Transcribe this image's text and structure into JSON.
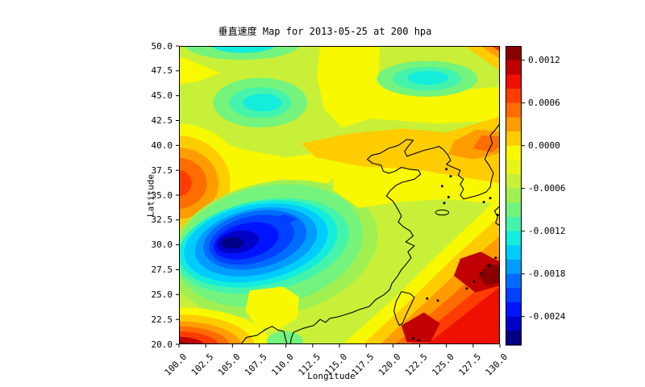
{
  "title": "垂直速度 Map for 2013-05-25 at 200 hpa",
  "axes": {
    "xlabel": "Longitude",
    "ylabel": "Latitude",
    "xlim": [
      100,
      130
    ],
    "ylim": [
      20,
      50
    ],
    "xticks": [
      "100.0",
      "102.5",
      "105.0",
      "107.5",
      "110.0",
      "112.5",
      "115.0",
      "117.5",
      "120.0",
      "122.5",
      "125.0",
      "127.5",
      "130.0"
    ],
    "xtick_values": [
      100,
      102.5,
      105,
      107.5,
      110,
      112.5,
      115,
      117.5,
      120,
      122.5,
      125,
      127.5,
      130
    ],
    "yticks": [
      "50.0",
      "47.5",
      "45.0",
      "42.5",
      "40.0",
      "37.5",
      "35.0",
      "32.5",
      "30.0",
      "27.5",
      "25.0",
      "22.5",
      "20.0"
    ],
    "ytick_values": [
      50,
      47.5,
      45,
      42.5,
      40,
      37.5,
      35,
      32.5,
      30,
      27.5,
      25,
      22.5,
      20
    ]
  },
  "colorbar": {
    "tick_labels": [
      "0.0012",
      "0.0006",
      "0.0000",
      "-0.0006",
      "-0.0012",
      "-0.0018",
      "-0.0024"
    ],
    "tick_values": [
      0.0012,
      0.0006,
      0.0,
      -0.0006,
      -0.0012,
      -0.0018,
      -0.0024
    ],
    "vmin": -0.0028,
    "vmax": 0.0014,
    "level_step": 0.0002,
    "n_bands": 21,
    "colormap": "jet",
    "palette": [
      "#000082",
      "#0000c8",
      "#0014ff",
      "#0040ff",
      "#006cff",
      "#009cff",
      "#00ccff",
      "#14ecdc",
      "#44f4ac",
      "#74f47c",
      "#a0f054",
      "#c8f038",
      "#e8f418",
      "#f8f800",
      "#ffcc00",
      "#ff9c00",
      "#ff6c00",
      "#ff3c00",
      "#ee1000",
      "#c00000",
      "#8a0000"
    ]
  },
  "chart_data": {
    "type": "filled-contour-map",
    "title": "垂直速度 Map for 2013-05-25 at 200 hpa",
    "variable": "垂直速度",
    "date": "2013-05-25",
    "pressure_level": "200 hpa",
    "xlabel": "Longitude",
    "ylabel": "Latitude",
    "xlim": [
      100,
      130
    ],
    "ylim": [
      20,
      50
    ],
    "colormap": "jet",
    "contour_interval": 0.0002,
    "features": [
      {
        "name": "strong-negative-center",
        "lon": 105.2,
        "lat": 30.2,
        "peak_value": -0.0027,
        "extent": "101-116E, 25-34N"
      },
      {
        "name": "negative-patch-northwest",
        "lon": 107.7,
        "lat": 44.3,
        "peak_value": -0.0015
      },
      {
        "name": "negative-patch-top-edge",
        "lon": 106.0,
        "lat": 50.0,
        "peak_value": -0.0015
      },
      {
        "name": "negative-patch-northeast",
        "lon": 123.3,
        "lat": 46.8,
        "peak_value": -0.0015
      },
      {
        "name": "positive-west-edge",
        "lon": 100.0,
        "lat": 36.0,
        "peak_value": 0.001
      },
      {
        "name": "positive-southwest-corner",
        "lon": 100.0,
        "lat": 20.0,
        "peak_value": 0.0013
      },
      {
        "name": "positive-southeast-ryukyu",
        "lon": 128.0,
        "lat": 27.0,
        "peak_value": 0.0013
      },
      {
        "name": "positive-south-of-taiwan",
        "lon": 122.5,
        "lat": 21.5,
        "peak_value": 0.0012
      },
      {
        "name": "positive-korea-band",
        "lon": 128.0,
        "lat": 40.0,
        "peak_value": 0.0008
      },
      {
        "name": "positive-top-right-corner",
        "lon": 130.0,
        "lat": 50.0,
        "peak_value": 0.001
      }
    ],
    "overlays": [
      "china-east-coastline",
      "bohai-sea",
      "korean-peninsula",
      "taiwan-island",
      "jeju-island",
      "ryukyu-islands",
      "leizhou-peninsula"
    ]
  }
}
